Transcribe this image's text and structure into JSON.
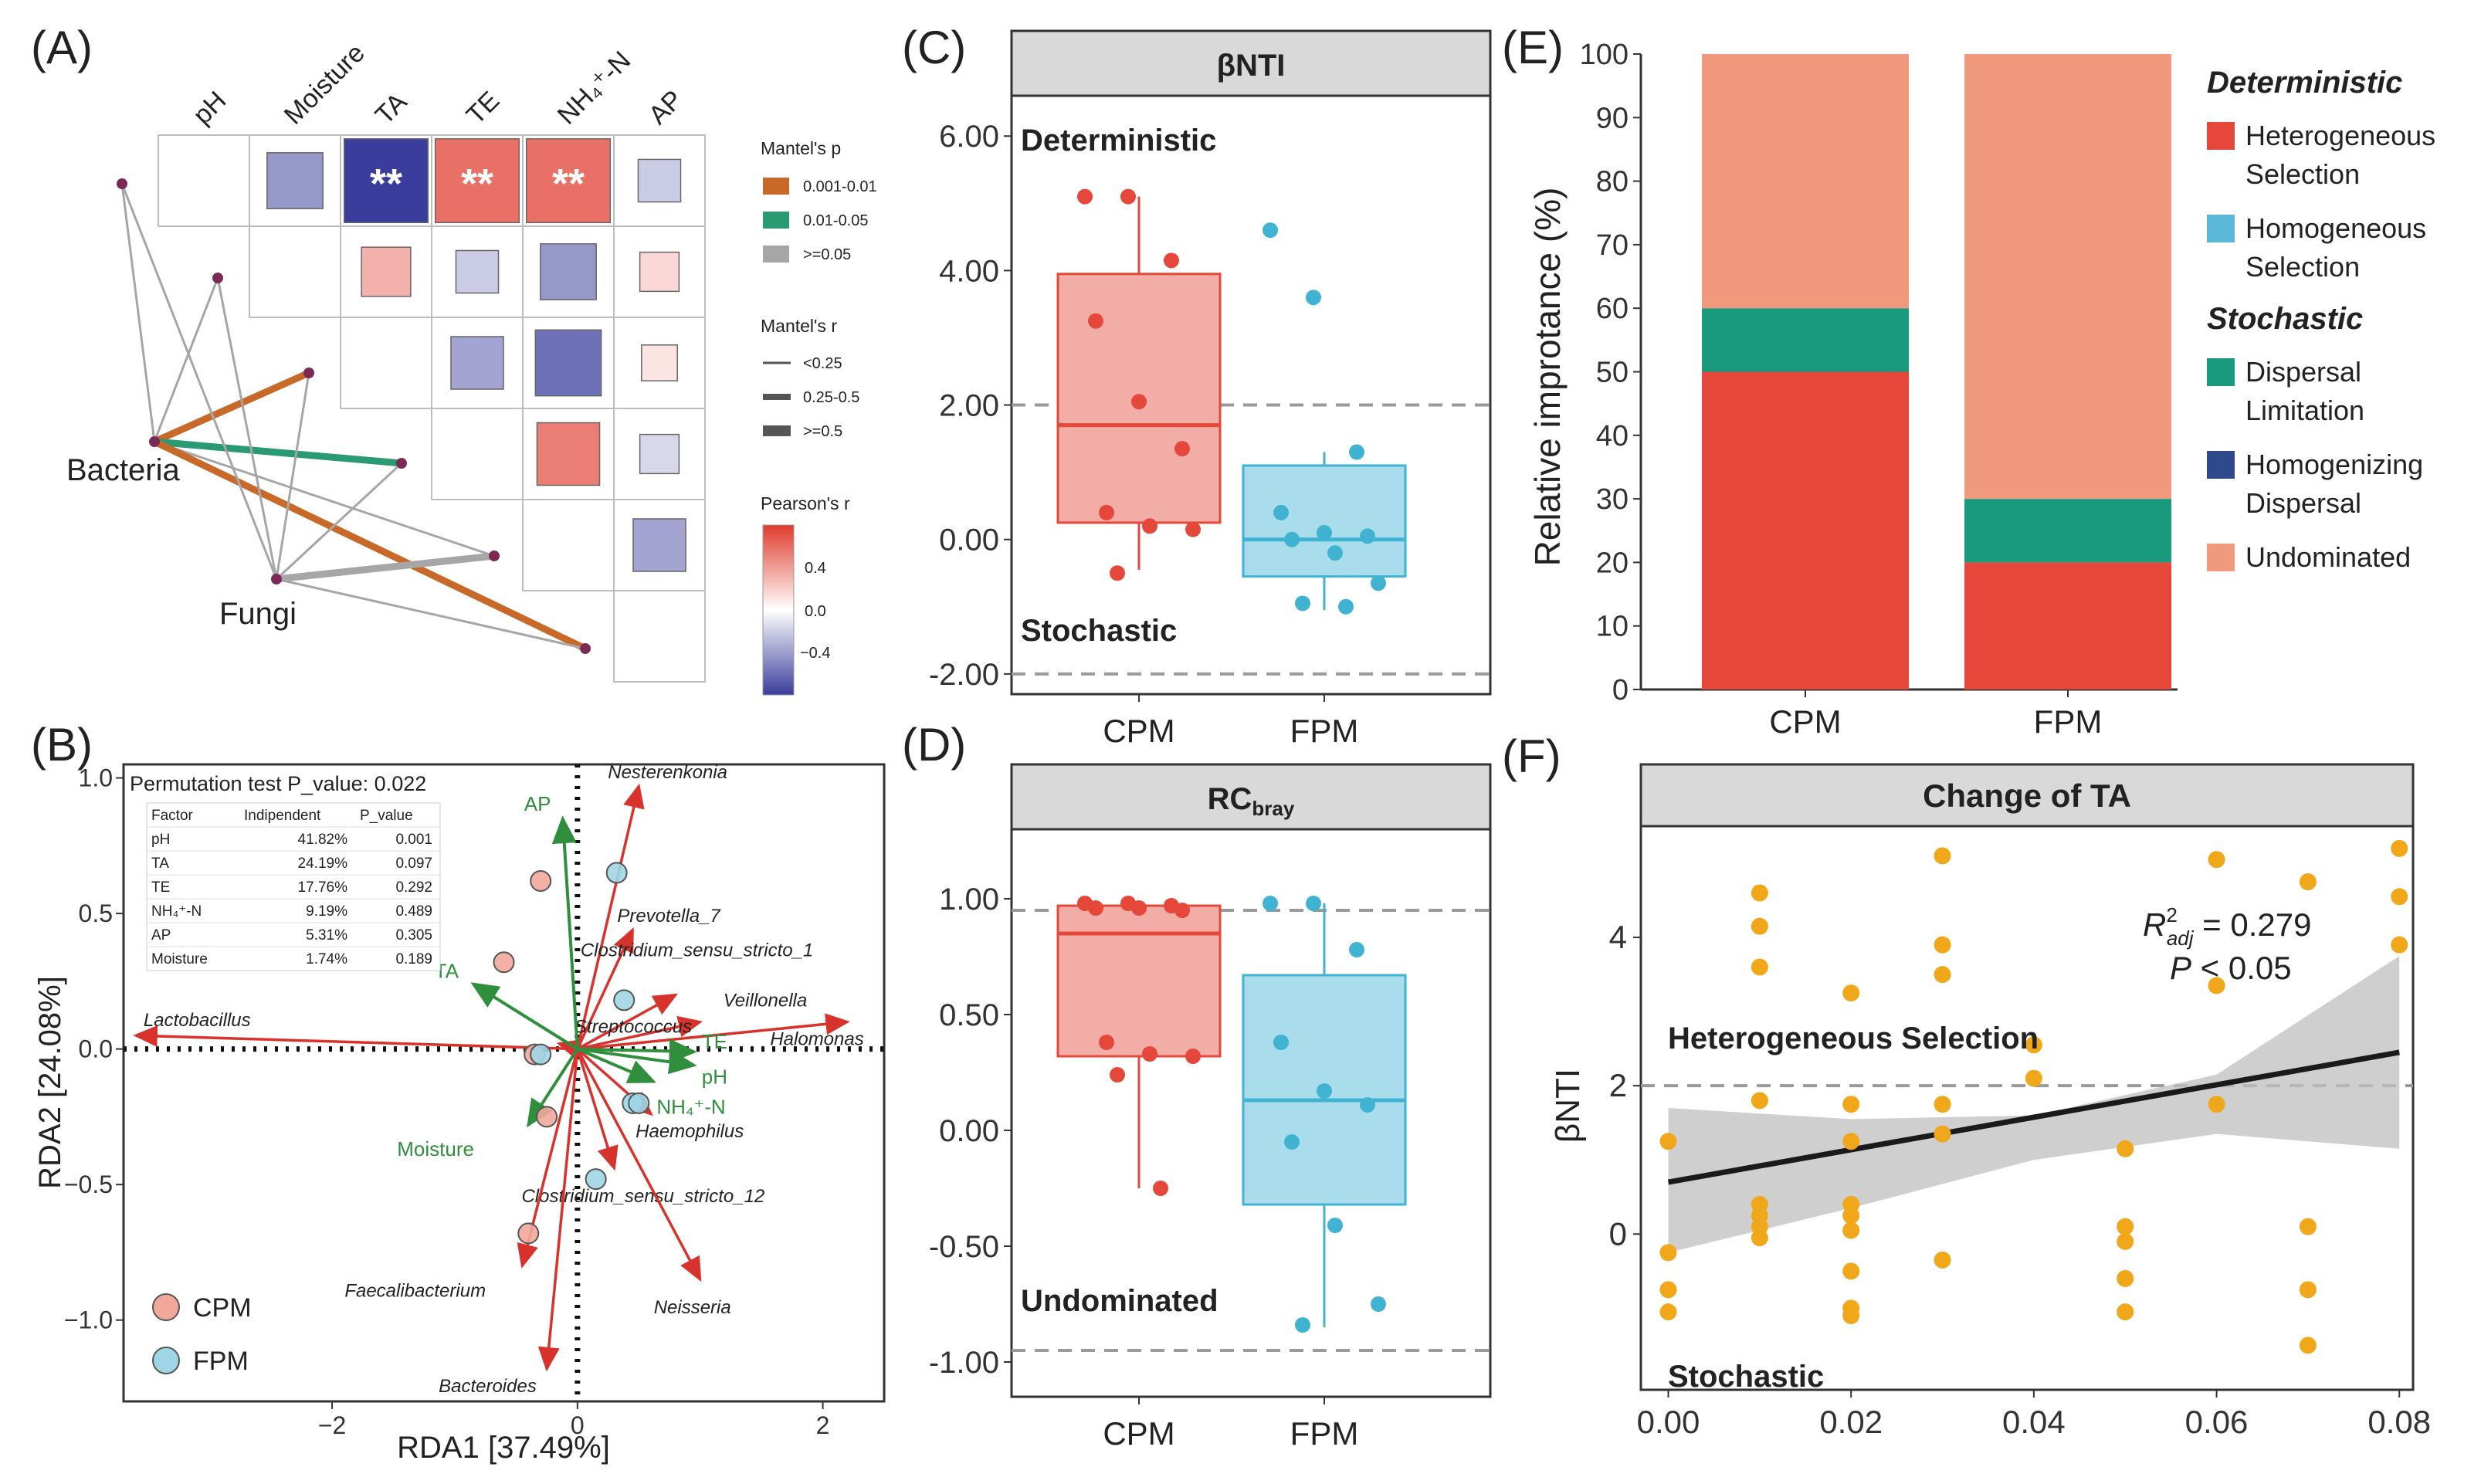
{
  "panel_labels": [
    "(A)",
    "(B)",
    "(C)",
    "(D)",
    "(E)",
    "(F)"
  ],
  "chart_data": [
    {
      "panel": "A",
      "type": "heatmap",
      "title": "",
      "variables": [
        "pH",
        "Moisture",
        "TA",
        "TE",
        "NH₄⁺-N",
        "AP"
      ],
      "pearson_r": [
        [
          null,
          -0.4,
          -0.75,
          0.55,
          0.55,
          -0.2
        ],
        [
          null,
          null,
          0.3,
          -0.2,
          -0.4,
          0.15
        ],
        [
          null,
          null,
          null,
          -0.35,
          -0.55,
          0.1
        ],
        [
          null,
          null,
          null,
          null,
          0.5,
          -0.15
        ],
        [
          null,
          null,
          null,
          null,
          null,
          -0.35
        ],
        [
          null,
          null,
          null,
          null,
          null,
          null
        ]
      ],
      "significance": [
        [
          "",
          "",
          "**",
          "**",
          "**",
          ""
        ]
      ],
      "nodes": [
        "Bacteria",
        "Fungi"
      ],
      "mantel_links": [
        {
          "from": "Bacteria",
          "to": "pH",
          "p": ">=0.05",
          "r": "<0.25"
        },
        {
          "from": "Bacteria",
          "to": "Moisture",
          "p": ">=0.05",
          "r": "<0.25"
        },
        {
          "from": "Bacteria",
          "to": "TA",
          "p": "0.001-0.01",
          "r": "0.25-0.5"
        },
        {
          "from": "Bacteria",
          "to": "TE",
          "p": "0.01-0.05",
          "r": "0.25-0.5"
        },
        {
          "from": "Bacteria",
          "to": "NH₄⁺-N",
          "p": ">=0.05",
          "r": "<0.25"
        },
        {
          "from": "Bacteria",
          "to": "AP",
          "p": "0.001-0.01",
          "r": "0.25-0.5"
        },
        {
          "from": "Fungi",
          "to": "pH",
          "p": ">=0.05",
          "r": "<0.25"
        },
        {
          "from": "Fungi",
          "to": "Moisture",
          "p": ">=0.05",
          "r": "<0.25"
        },
        {
          "from": "Fungi",
          "to": "TA",
          "p": ">=0.05",
          "r": "<0.25"
        },
        {
          "from": "Fungi",
          "to": "TE",
          "p": ">=0.05",
          "r": "<0.25"
        },
        {
          "from": "Fungi",
          "to": "NH₄⁺-N",
          "p": ">=0.05",
          "r": "0.25-0.5"
        },
        {
          "from": "Fungi",
          "to": "AP",
          "p": ">=0.05",
          "r": "<0.25"
        }
      ],
      "legend": {
        "mantel_p_title": "Mantel's p",
        "mantel_p": [
          {
            "label": "0.001-0.01",
            "color": "#c8692a"
          },
          {
            "label": "0.01-0.05",
            "color": "#2a9a73"
          },
          {
            "label": ">=0.05",
            "color": "#a6a6a6"
          }
        ],
        "mantel_r_title": "Mantel's r",
        "mantel_r": [
          "<0.25",
          "0.25-0.5",
          ">=0.5"
        ],
        "pearson_title": "Pearson's r",
        "pearson_ticks": [
          "0.4",
          "0.0",
          "−0.4"
        ]
      },
      "colors": {
        "pos": "#e03c2e",
        "neg": "#3a3d9c",
        "mid": "#ffffff"
      }
    },
    {
      "panel": "B",
      "type": "scatter",
      "title": "Permutation test P_value: 0.022",
      "xlabel": "RDA1 [37.49%]",
      "ylabel": "RDA2 [24.08%]",
      "xlim": [
        -3.7,
        2.5
      ],
      "ylim": [
        -1.3,
        1.05
      ],
      "xticks": [
        -2,
        0,
        2
      ],
      "yticks": [
        -1.0,
        -0.5,
        0.0,
        0.5,
        1.0
      ],
      "xtick_labels": [
        "−2",
        "0",
        "2"
      ],
      "ytick_labels": [
        "−1.0",
        "−0.5",
        "0.0",
        "0.5",
        "1.0"
      ],
      "table": {
        "headers": [
          "Factor",
          "Indipendent",
          "P_value"
        ],
        "rows": [
          [
            "pH",
            "41.82%",
            "0.001"
          ],
          [
            "TA",
            "24.19%",
            "0.097"
          ],
          [
            "TE",
            "17.76%",
            "0.292"
          ],
          [
            "NH₄⁺-N",
            "9.19%",
            "0.489"
          ],
          [
            "AP",
            "5.31%",
            "0.305"
          ],
          [
            "Moisture",
            "1.74%",
            "0.189"
          ]
        ]
      },
      "series": [
        {
          "name": "CPM",
          "color": "#f2a79b",
          "points": [
            [
              -0.3,
              0.62
            ],
            [
              -0.6,
              0.32
            ],
            [
              -0.25,
              -0.25
            ],
            [
              -0.4,
              -0.68
            ],
            [
              -0.35,
              -0.02
            ]
          ]
        },
        {
          "name": "FPM",
          "color": "#9fd6e5",
          "points": [
            [
              0.32,
              0.65
            ],
            [
              0.38,
              0.18
            ],
            [
              0.45,
              -0.2
            ],
            [
              0.5,
              -0.2
            ],
            [
              0.15,
              -0.48
            ],
            [
              -0.3,
              -0.02
            ]
          ]
        }
      ],
      "env_arrows": [
        {
          "label": "AP",
          "x": -0.12,
          "y": 0.85
        },
        {
          "label": "TA",
          "x": -0.85,
          "y": 0.24
        },
        {
          "label": "TE",
          "x": 0.95,
          "y": -0.01
        },
        {
          "label": "pH",
          "x": 0.95,
          "y": -0.06
        },
        {
          "label": "NH₄⁺-N",
          "x": 0.62,
          "y": -0.12
        },
        {
          "label": "Moisture",
          "x": -0.4,
          "y": -0.28
        }
      ],
      "taxa_arrows": [
        {
          "label": "Nesterenkonia",
          "x": 0.5,
          "y": 0.97
        },
        {
          "label": "Prevotella_7",
          "x": 0.45,
          "y": 0.44
        },
        {
          "label": "Clostridium_sensu_stricto_1",
          "x": 0.8,
          "y": 0.2
        },
        {
          "label": "Veillonella",
          "x": 1.0,
          "y": 0.1
        },
        {
          "label": "Halomonas",
          "x": 2.2,
          "y": 0.1
        },
        {
          "label": "Streptococcus",
          "x": -0.15,
          "y": 0.02
        },
        {
          "label": "Lactobacillus",
          "x": -3.6,
          "y": 0.05
        },
        {
          "label": "Haemophilus",
          "x": 0.6,
          "y": -0.24
        },
        {
          "label": "Clostridium_sensu_stricto_12",
          "x": 0.3,
          "y": -0.44
        },
        {
          "label": "Neisseria",
          "x": 1.0,
          "y": -0.85
        },
        {
          "label": "Faecalibacterium",
          "x": -0.45,
          "y": -0.8
        },
        {
          "label": "Bacteroides",
          "x": -0.25,
          "y": -1.18
        }
      ]
    },
    {
      "panel": "C",
      "type": "box",
      "title": "βNTI",
      "categories": [
        "CPM",
        "FPM"
      ],
      "colors": {
        "CPM": "#e5483b",
        "FPM": "#40b3d3"
      },
      "ylim": [
        -2.3,
        6.6
      ],
      "yticks": [
        -2.0,
        0.0,
        2.0,
        4.0,
        6.0
      ],
      "ytick_labels": [
        "-2.00",
        "0.00",
        "2.00",
        "4.00",
        "6.00"
      ],
      "ref_lines": [
        2,
        -2
      ],
      "annotations": [
        "Deterministic",
        "Stochastic"
      ],
      "boxes": [
        {
          "name": "CPM",
          "q1": 0.25,
          "median": 1.7,
          "q3": 3.95,
          "whisker_low": -0.45,
          "whisker_high": 5.1
        },
        {
          "name": "FPM",
          "q1": -0.55,
          "median": 0.0,
          "q3": 1.1,
          "whisker_low": -1.05,
          "whisker_high": 1.3
        }
      ],
      "points": {
        "CPM": [
          5.1,
          5.1,
          4.15,
          3.25,
          2.05,
          1.35,
          0.4,
          0.2,
          0.15,
          -0.5
        ],
        "FPM": [
          4.6,
          3.6,
          1.3,
          0.4,
          0.1,
          0.05,
          0.0,
          -0.2,
          -0.65,
          -0.95,
          -1.0
        ]
      }
    },
    {
      "panel": "D",
      "type": "box",
      "title": "RC",
      "title_sub": "bray",
      "categories": [
        "CPM",
        "FPM"
      ],
      "colors": {
        "CPM": "#e5483b",
        "FPM": "#40b3d3"
      },
      "ylim": [
        -1.15,
        1.3
      ],
      "yticks": [
        -1.0,
        -0.5,
        0.0,
        0.5,
        1.0
      ],
      "ytick_labels": [
        "-1.00",
        "-0.50",
        "0.00",
        "0.50",
        "1.00"
      ],
      "ref_lines": [
        0.95,
        -0.95
      ],
      "annotations": [
        "Undominated"
      ],
      "boxes": [
        {
          "name": "CPM",
          "q1": 0.32,
          "median": 0.85,
          "q3": 0.97,
          "whisker_low": -0.25,
          "whisker_high": 0.98
        },
        {
          "name": "FPM",
          "q1": -0.32,
          "median": 0.13,
          "q3": 0.67,
          "whisker_low": -0.85,
          "whisker_high": 0.98
        }
      ],
      "points": {
        "CPM": [
          0.98,
          0.98,
          0.97,
          0.96,
          0.96,
          0.95,
          0.38,
          0.33,
          0.32,
          0.24,
          -0.25
        ],
        "FPM": [
          0.98,
          0.98,
          0.78,
          0.38,
          0.17,
          0.11,
          -0.05,
          -0.41,
          -0.75,
          -0.84
        ]
      }
    },
    {
      "panel": "E",
      "type": "bar",
      "stacked": true,
      "categories": [
        "CPM",
        "FPM"
      ],
      "ylabel": "Relative improtance (%)",
      "ylim": [
        0,
        100
      ],
      "yticks": [
        0,
        10,
        20,
        30,
        40,
        50,
        60,
        70,
        80,
        90,
        100
      ],
      "series": [
        {
          "name": "Heterogeneous Selection",
          "color": "#e5483b",
          "values": [
            50,
            20
          ]
        },
        {
          "name": "Homogeneous Selection",
          "color": "#5ab8d8",
          "values": [
            0,
            0
          ]
        },
        {
          "name": "Dispersal Limitation",
          "color": "#1a9a7c",
          "values": [
            10,
            10
          ]
        },
        {
          "name": "Homogenizing Dispersal",
          "color": "#2e4a8a",
          "values": [
            0,
            0
          ]
        },
        {
          "name": "Undominated",
          "color": "#f0997d",
          "values": [
            40,
            70
          ]
        }
      ],
      "legend": [
        {
          "group": "Deterministic",
          "items": [
            [
              "Heterogeneous",
              "Selection"
            ],
            [
              "Homogeneous",
              "Selection"
            ]
          ]
        },
        {
          "group": "Stochastic",
          "items": [
            [
              "Dispersal",
              "Limitation"
            ],
            [
              "Homogenizing",
              "Dispersal"
            ],
            [
              "Undominated"
            ]
          ]
        }
      ]
    },
    {
      "panel": "F",
      "type": "scatter",
      "title": "Change of TA",
      "xlabel": "",
      "ylabel": "βNTI",
      "xlim": [
        -0.003,
        0.0815
      ],
      "ylim": [
        -2.1,
        5.5
      ],
      "xticks": [
        0.0,
        0.02,
        0.04,
        0.06,
        0.08
      ],
      "xtick_labels": [
        "0.00",
        "0.02",
        "0.04",
        "0.06",
        "0.08"
      ],
      "yticks": [
        0,
        2,
        4
      ],
      "ytick_labels": [
        "0",
        "2",
        "4"
      ],
      "ref_line": 2,
      "annotations": [
        "Heterogeneous Selection",
        "Stochastic"
      ],
      "stats": {
        "r2_label": "R",
        "r2_sub": "adj",
        "r2_sup": "2",
        "r2_value": " = 0.279",
        "p_label": "P",
        "p_value": " < 0.05"
      },
      "fit": {
        "x": [
          0.0,
          0.08
        ],
        "y": [
          0.7,
          2.45
        ]
      },
      "ci_upper": [
        1.7,
        1.55,
        1.6,
        2.15,
        3.75
      ],
      "ci_lower": [
        -0.25,
        0.35,
        1.0,
        1.35,
        1.15
      ],
      "ci_x": [
        0.0,
        0.02,
        0.04,
        0.06,
        0.08
      ],
      "point_color": "#f0a81a",
      "points": [
        [
          0.0,
          1.25
        ],
        [
          0.0,
          -0.25
        ],
        [
          0.0,
          -0.75
        ],
        [
          0.0,
          -1.05
        ],
        [
          0.01,
          4.6
        ],
        [
          0.01,
          4.15
        ],
        [
          0.01,
          3.6
        ],
        [
          0.01,
          1.8
        ],
        [
          0.01,
          0.4
        ],
        [
          0.01,
          0.25
        ],
        [
          0.01,
          0.1
        ],
        [
          0.01,
          -0.05
        ],
        [
          0.02,
          3.25
        ],
        [
          0.02,
          1.75
        ],
        [
          0.02,
          1.25
        ],
        [
          0.02,
          0.4
        ],
        [
          0.02,
          0.25
        ],
        [
          0.02,
          0.05
        ],
        [
          0.02,
          -0.5
        ],
        [
          0.02,
          -1.0
        ],
        [
          0.02,
          -1.1
        ],
        [
          0.03,
          5.1
        ],
        [
          0.03,
          3.9
        ],
        [
          0.03,
          3.5
        ],
        [
          0.03,
          1.75
        ],
        [
          0.03,
          1.35
        ],
        [
          0.03,
          -0.35
        ],
        [
          0.04,
          2.55
        ],
        [
          0.04,
          2.1
        ],
        [
          0.05,
          1.15
        ],
        [
          0.05,
          0.1
        ],
        [
          0.05,
          -0.1
        ],
        [
          0.05,
          -0.6
        ],
        [
          0.05,
          -1.05
        ],
        [
          0.06,
          5.05
        ],
        [
          0.06,
          3.35
        ],
        [
          0.06,
          1.75
        ],
        [
          0.07,
          4.75
        ],
        [
          0.07,
          0.1
        ],
        [
          0.07,
          -0.75
        ],
        [
          0.07,
          -1.5
        ],
        [
          0.08,
          5.2
        ],
        [
          0.08,
          4.55
        ],
        [
          0.08,
          3.9
        ]
      ]
    }
  ]
}
